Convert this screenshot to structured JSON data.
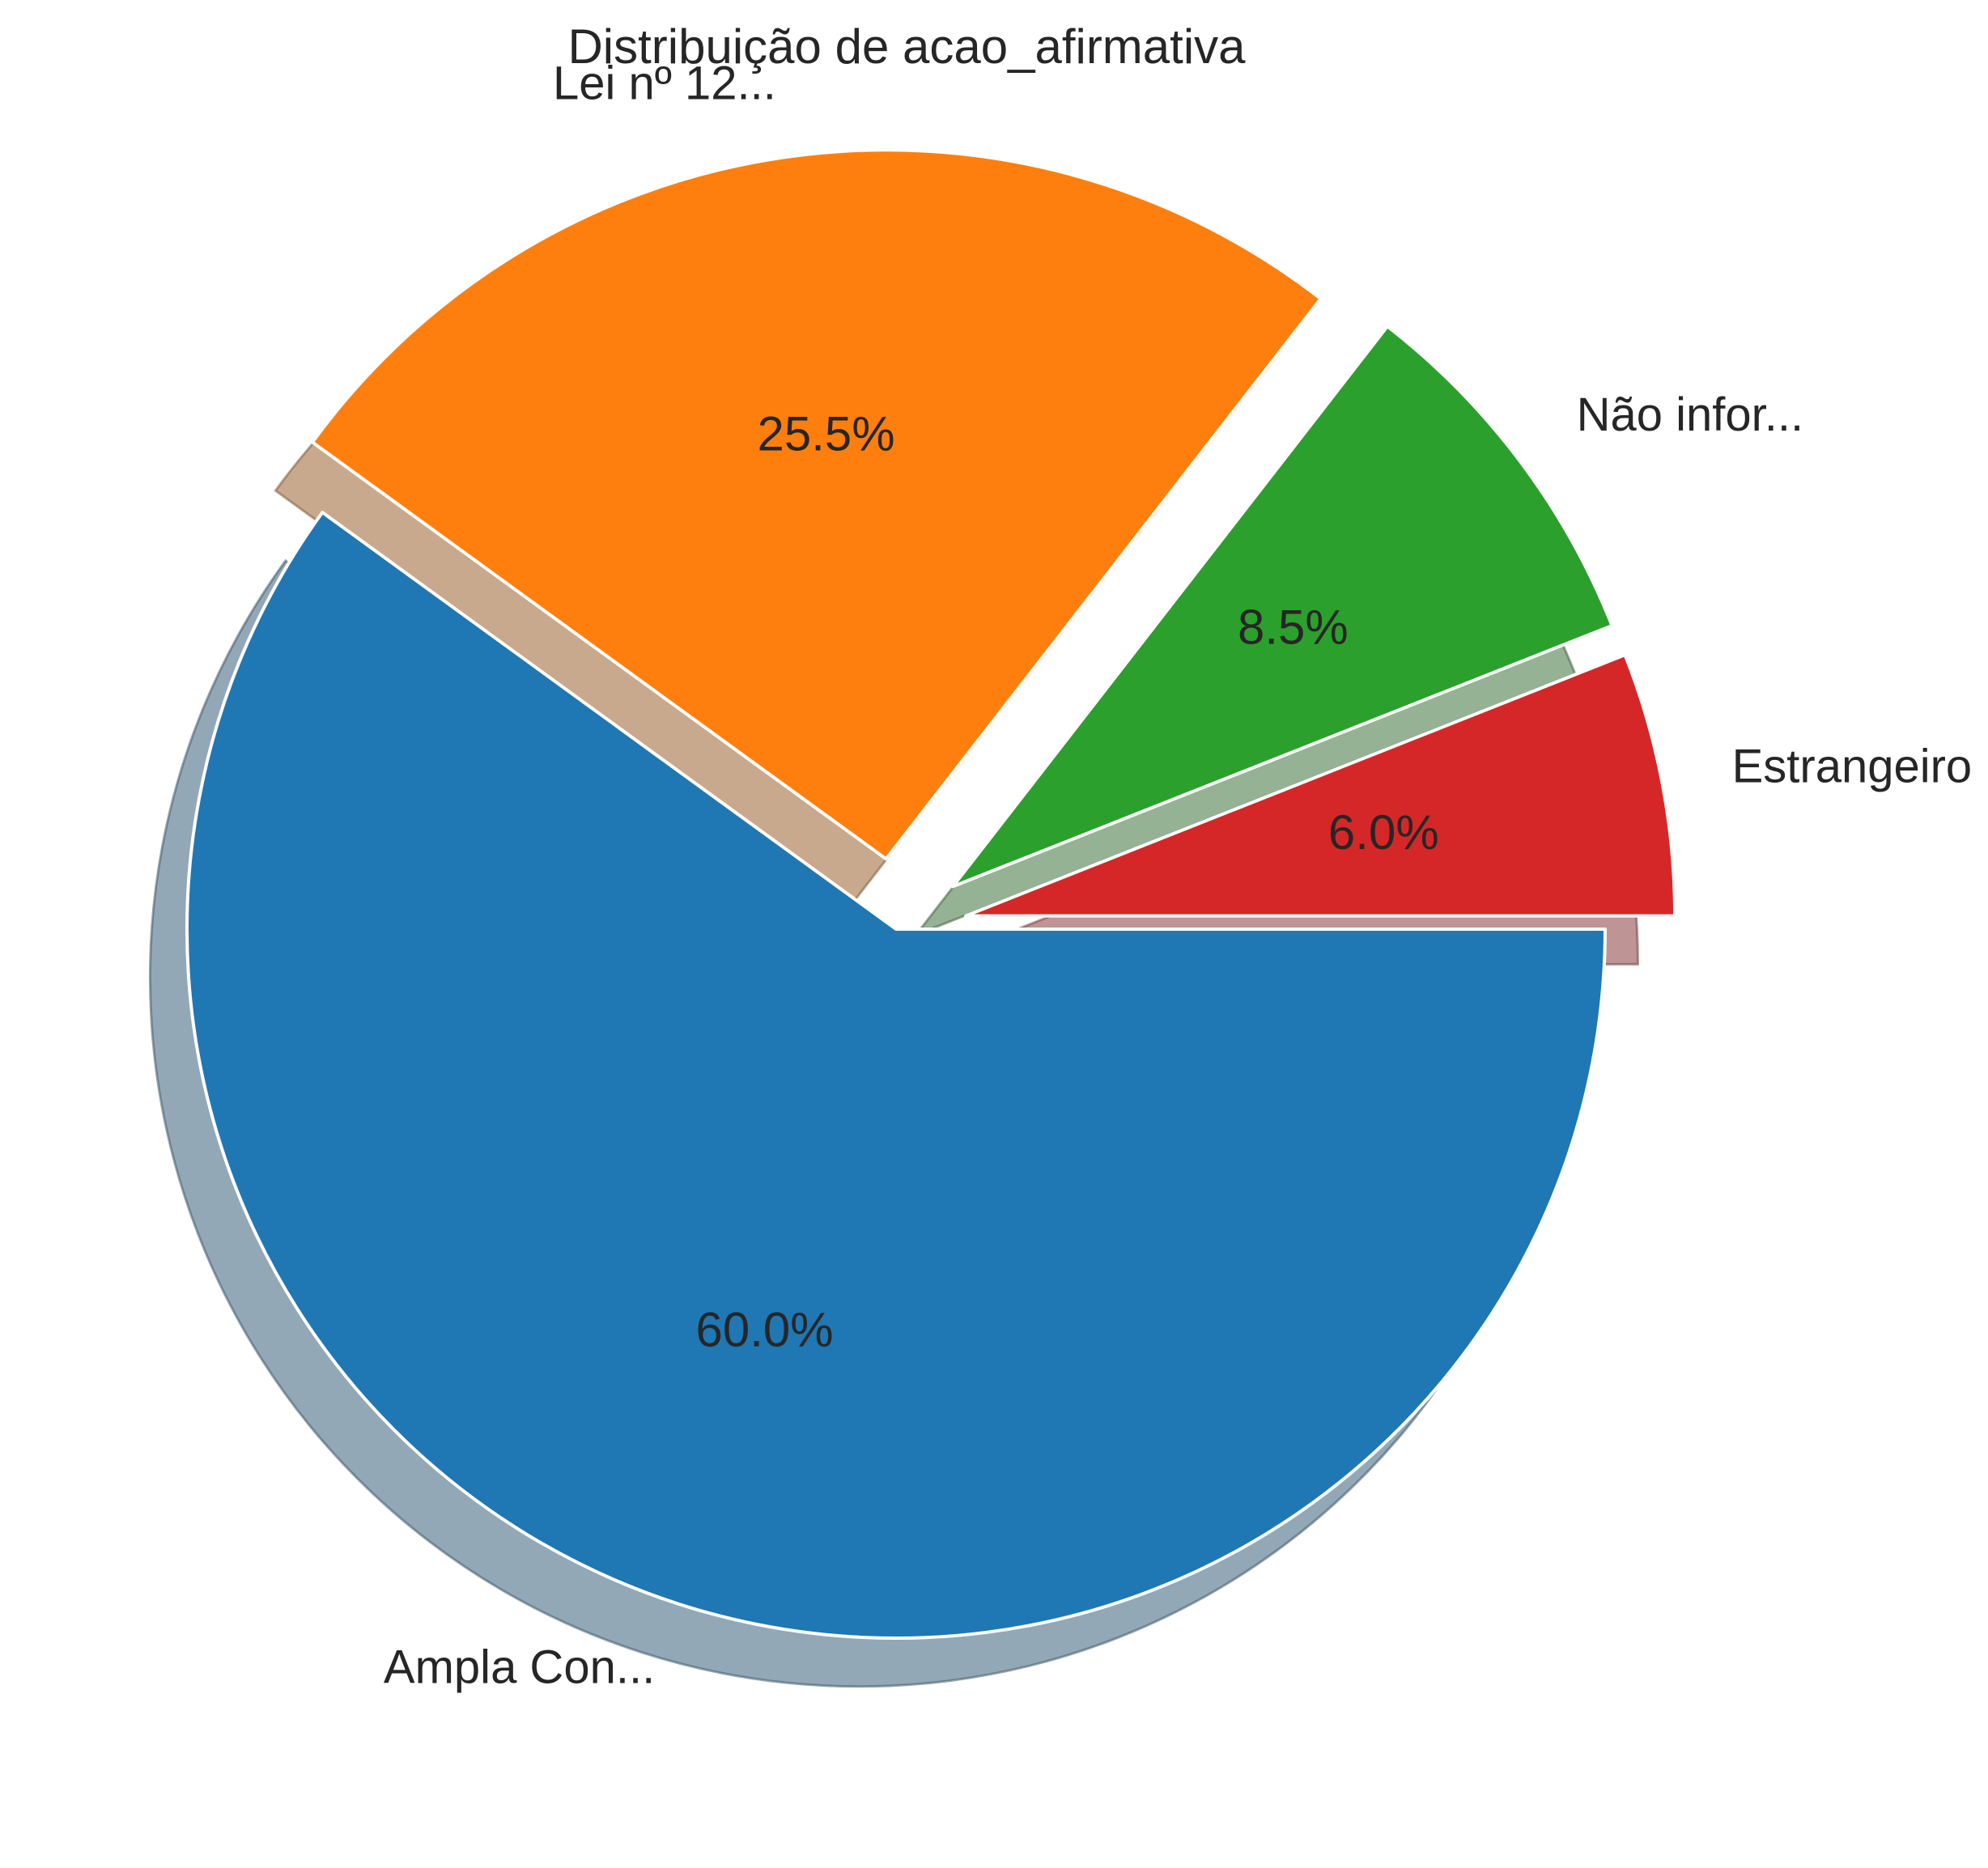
{
  "chart_data": {
    "type": "pie",
    "title": "Distribuição de acao_afirmativa",
    "slices": [
      {
        "label": "Ampla Con...",
        "value": 60.0,
        "pct_label": "60.0%",
        "color": "#1f77b4",
        "exploded": false
      },
      {
        "label": "Lei nº 12...",
        "value": 25.5,
        "pct_label": "25.5%",
        "color": "#ff7f0e",
        "exploded": true
      },
      {
        "label": "Não infor...",
        "value": 8.5,
        "pct_label": "8.5%",
        "color": "#2ca02c",
        "exploded": true
      },
      {
        "label": "Estrangeiro",
        "value": 6.0,
        "pct_label": "6.0%",
        "color": "#d62728",
        "exploded": true
      }
    ],
    "start_angle": "0 degrees (3 o'clock), clockwise",
    "shadow": true,
    "wedge_edge_color": "#ffffff"
  }
}
